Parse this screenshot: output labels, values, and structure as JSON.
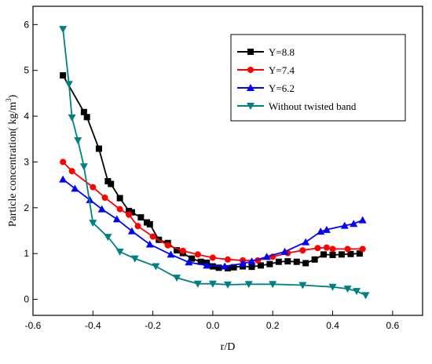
{
  "chart_data": {
    "type": "line",
    "title": "",
    "xlabel": "r/D",
    "ylabel": "Particle concentration(  kg/m",
    "ylabel_sup": "3",
    "ylabel_close": ")",
    "xlim": [
      -0.6,
      0.7
    ],
    "ylim": [
      -0.35,
      6.4
    ],
    "xticks": [
      -0.6,
      -0.4,
      -0.2,
      0.0,
      0.2,
      0.4,
      0.6
    ],
    "xtick_labels": [
      "-0.6",
      "-0.4",
      "-0.2",
      "0.0",
      "0.2",
      "0.4",
      "0.6"
    ],
    "yticks": [
      0,
      1,
      2,
      3,
      4,
      5,
      6
    ],
    "ytick_labels": [
      "0",
      "1",
      "2",
      "3",
      "4",
      "5",
      "6"
    ],
    "legend_position": "top-right",
    "grid": false,
    "series": [
      {
        "name": "Y=8.8",
        "color": "#000000",
        "marker": "square",
        "x": [
          -0.5,
          -0.43,
          -0.42,
          -0.38,
          -0.35,
          -0.34,
          -0.31,
          -0.28,
          -0.27,
          -0.24,
          -0.22,
          -0.21,
          -0.18,
          -0.15,
          -0.12,
          -0.1,
          -0.07,
          -0.04,
          -0.02,
          0.0,
          0.02,
          0.05,
          0.07,
          0.1,
          0.13,
          0.16,
          0.19,
          0.22,
          0.25,
          0.28,
          0.31,
          0.34,
          0.37,
          0.4,
          0.43,
          0.46,
          0.49
        ],
        "y": [
          4.89,
          4.09,
          3.98,
          3.29,
          2.58,
          2.52,
          2.21,
          1.93,
          1.9,
          1.79,
          1.68,
          1.64,
          1.3,
          1.23,
          1.07,
          1.01,
          0.89,
          0.82,
          0.8,
          0.72,
          0.69,
          0.68,
          0.7,
          0.72,
          0.71,
          0.74,
          0.77,
          0.82,
          0.83,
          0.82,
          0.79,
          0.87,
          0.98,
          0.97,
          0.98,
          0.99,
          1.0
        ]
      },
      {
        "name": "Y=7.4",
        "color": "#ff0000",
        "marker": "circle",
        "x": [
          -0.5,
          -0.47,
          -0.4,
          -0.36,
          -0.31,
          -0.28,
          -0.25,
          -0.2,
          -0.15,
          -0.1,
          -0.05,
          0.0,
          0.05,
          0.1,
          0.15,
          0.2,
          0.25,
          0.3,
          0.35,
          0.38,
          0.4,
          0.45,
          0.5
        ],
        "y": [
          3.0,
          2.8,
          2.45,
          2.22,
          1.97,
          1.85,
          1.6,
          1.37,
          1.18,
          1.06,
          0.98,
          0.91,
          0.87,
          0.85,
          0.85,
          0.93,
          1.01,
          1.07,
          1.12,
          1.13,
          1.1,
          1.1,
          1.1
        ]
      },
      {
        "name": "Y=6.2",
        "color": "#0000ff",
        "marker": "triangle-up",
        "x": [
          -0.5,
          -0.46,
          -0.41,
          -0.37,
          -0.32,
          -0.27,
          -0.21,
          -0.14,
          -0.08,
          -0.02,
          0.04,
          0.1,
          0.13,
          0.18,
          0.24,
          0.31,
          0.36,
          0.38,
          0.44,
          0.47,
          0.5
        ],
        "y": [
          2.62,
          2.42,
          2.17,
          1.97,
          1.75,
          1.49,
          1.2,
          0.98,
          0.81,
          0.74,
          0.72,
          0.78,
          0.83,
          0.93,
          1.04,
          1.25,
          1.48,
          1.52,
          1.61,
          1.65,
          1.73
        ]
      },
      {
        "name": "Without twisted band",
        "color": "#008080",
        "marker": "triangle-down",
        "x": [
          -0.5,
          -0.48,
          -0.47,
          -0.45,
          -0.43,
          -0.4,
          -0.35,
          -0.31,
          -0.26,
          -0.19,
          -0.12,
          -0.05,
          0.0,
          0.05,
          0.12,
          0.2,
          0.3,
          0.4,
          0.45,
          0.48,
          0.51
        ],
        "y": [
          5.9,
          4.7,
          3.97,
          3.47,
          2.9,
          1.67,
          1.36,
          1.04,
          0.89,
          0.72,
          0.47,
          0.34,
          0.34,
          0.32,
          0.33,
          0.33,
          0.31,
          0.27,
          0.23,
          0.18,
          0.09
        ]
      }
    ]
  }
}
